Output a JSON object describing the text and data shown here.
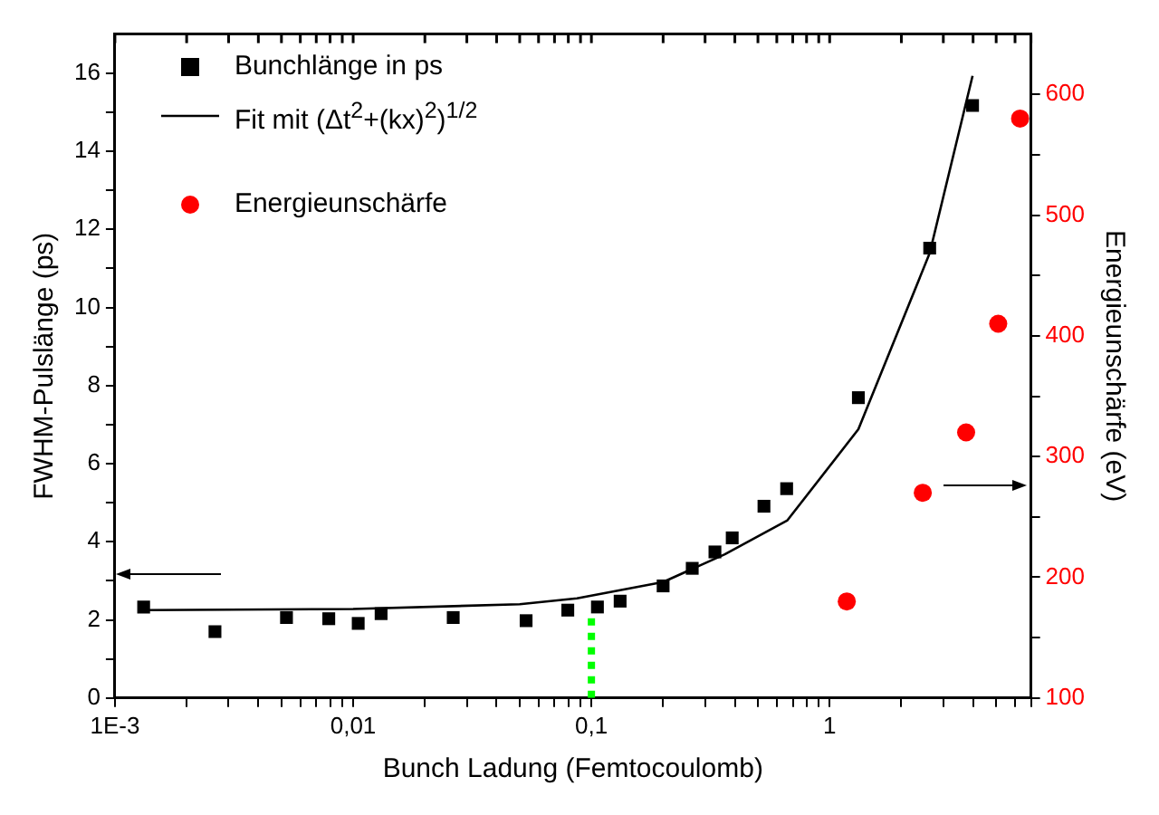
{
  "chart_data": {
    "type": "scatter",
    "xlabel": "Bunch Ladung (Femtocoulomb)",
    "ylabel": "FWHM-Pulslänge (ps)",
    "y2label": "Energieunschärfe (eV)",
    "log": "x",
    "grid": false,
    "legend": "top left",
    "xlim": [
      0.001,
      7
    ],
    "xticks": [
      {
        "value": 0.001,
        "label": "1E-3"
      },
      {
        "value": 0.002,
        "label": null
      },
      {
        "value": 0.003,
        "label": null
      },
      {
        "value": 0.004,
        "label": null
      },
      {
        "value": 0.005,
        "label": null
      },
      {
        "value": 0.006,
        "label": null
      },
      {
        "value": 0.007,
        "label": null
      },
      {
        "value": 0.008,
        "label": null
      },
      {
        "value": 0.009,
        "label": null
      },
      {
        "value": 0.01,
        "label": "0,01"
      },
      {
        "value": 0.02,
        "label": null
      },
      {
        "value": 0.03,
        "label": null
      },
      {
        "value": 0.04,
        "label": null
      },
      {
        "value": 0.05,
        "label": null
      },
      {
        "value": 0.06,
        "label": null
      },
      {
        "value": 0.07,
        "label": null
      },
      {
        "value": 0.08,
        "label": null
      },
      {
        "value": 0.09,
        "label": null
      },
      {
        "value": 0.1,
        "label": "0,1"
      },
      {
        "value": 0.2,
        "label": null
      },
      {
        "value": 0.3,
        "label": null
      },
      {
        "value": 0.4,
        "label": null
      },
      {
        "value": 0.5,
        "label": null
      },
      {
        "value": 0.6,
        "label": null
      },
      {
        "value": 0.7,
        "label": null
      },
      {
        "value": 0.8,
        "label": null
      },
      {
        "value": 0.9,
        "label": null
      },
      {
        "value": 1,
        "label": "1"
      },
      {
        "value": 2,
        "label": null
      },
      {
        "value": 3,
        "label": null
      },
      {
        "value": 4,
        "label": null
      },
      {
        "value": 5,
        "label": null
      },
      {
        "value": 6,
        "label": null
      },
      {
        "value": 7,
        "label": null
      }
    ],
    "ylim": [
      0,
      17
    ],
    "yticks": [
      0,
      {
        "value": 1,
        "label": null
      },
      2,
      {
        "value": 3,
        "label": null
      },
      4,
      {
        "value": 5,
        "label": null
      },
      6,
      {
        "value": 7,
        "label": null
      },
      8,
      {
        "value": 9,
        "label": null
      },
      10,
      {
        "value": 11,
        "label": null
      },
      12,
      {
        "value": 13,
        "label": null
      },
      14,
      {
        "value": 15,
        "label": null
      },
      16
    ],
    "y2lim": [
      100,
      650
    ],
    "y2ticks": [
      100,
      {
        "value": 150,
        "label": null
      },
      200,
      {
        "value": 250,
        "label": null
      },
      300,
      {
        "value": 350,
        "label": null
      },
      400,
      {
        "value": 450,
        "label": null
      },
      500,
      {
        "value": 550,
        "label": null
      },
      600
    ],
    "series": [
      {
        "name": "Bunchlänge in ps",
        "marker": "square",
        "color": "#000000",
        "x": [
          0.00132,
          0.00263,
          0.00525,
          0.0079,
          0.0105,
          0.0131,
          0.0263,
          0.0532,
          0.0796,
          0.106,
          0.132,
          0.2,
          0.265,
          0.33,
          0.39,
          0.53,
          0.66,
          1.32,
          2.63,
          3.98
        ],
        "values": [
          2.33,
          1.7,
          2.06,
          2.03,
          1.91,
          2.16,
          2.06,
          1.98,
          2.25,
          2.33,
          2.48,
          2.87,
          3.32,
          3.74,
          4.1,
          4.91,
          5.36,
          7.69,
          11.52,
          15.17
        ]
      },
      {
        "name": "Fit mit (Δt$^{2}$+(kx)$^{2}$)$^{1/2}$",
        "type": "line",
        "marker": "none",
        "line_style": "solid",
        "color": "#000000",
        "x": [
          0.00132,
          0.01,
          0.05,
          0.087,
          0.2,
          0.363,
          0.665,
          1.32,
          2.63,
          3.98
        ],
        "values": [
          2.25,
          2.28,
          2.4,
          2.55,
          2.97,
          3.68,
          4.55,
          6.88,
          11.39,
          15.93
        ]
      },
      {
        "name": "Energieunschärfe",
        "marker": "circle",
        "axis": "y2",
        "color": "#ff0000",
        "x": [
          1.18,
          2.46,
          3.74,
          5.1,
          6.3
        ],
        "values": [
          180,
          270,
          320,
          410,
          580
        ]
      },
      {
        "type": "line",
        "marker": "none",
        "line_style": "dotted",
        "color": "#00ff00",
        "x": [
          0.1,
          0.1
        ],
        "values": [
          0,
          2.2
        ]
      }
    ]
  }
}
